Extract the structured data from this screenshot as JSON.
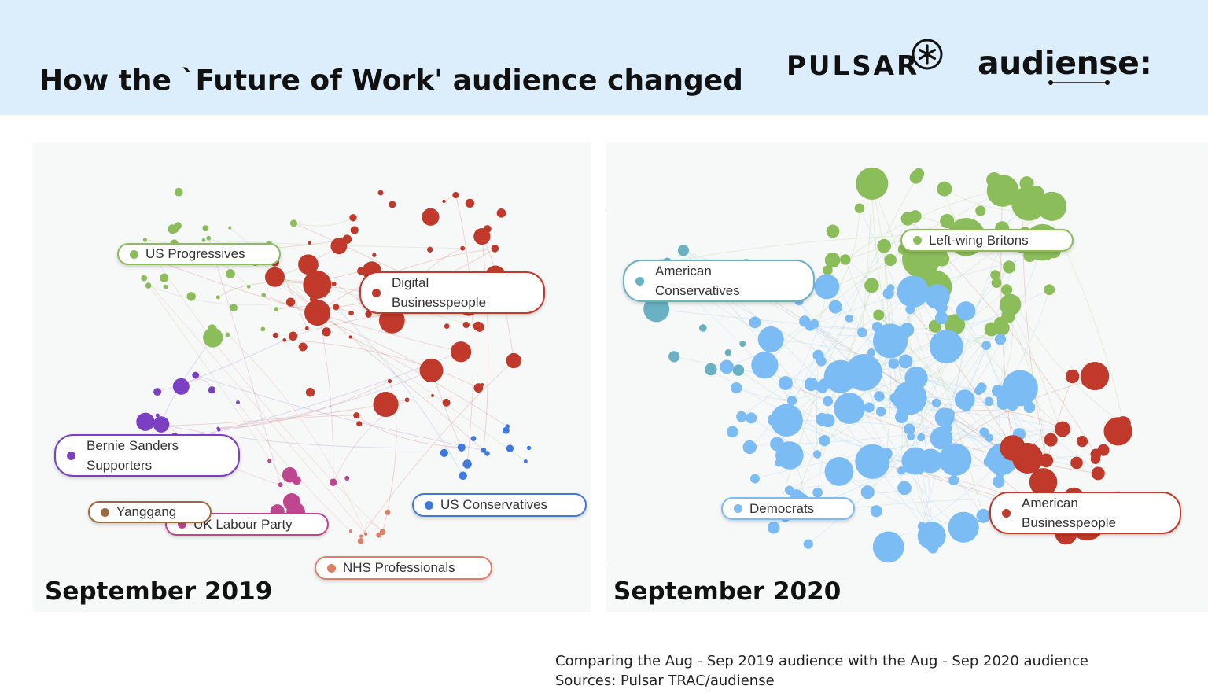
{
  "title": "How the `Future of Work' audience changed",
  "logos": {
    "pulsar": "PULSAR",
    "audiense": "audiense:"
  },
  "colors": {
    "header_bg": "#dcedfb",
    "progressives": "#8bbd5a",
    "businesspeople": "#c0392b",
    "bernie": "#7b3fc4",
    "labour": "#c0458f",
    "yanggang": "#9a6b3c",
    "us_conservatives": "#3f78de",
    "nhs": "#df8066",
    "american_conservatives": "#6ab1c4",
    "democrats": "#7cbcf4"
  },
  "panels": [
    {
      "year": "September 2019",
      "clusters": [
        {
          "label": "US Progressives",
          "color": "#8bbd5a"
        },
        {
          "label": "Digital Businesspeople",
          "line1": "Digital",
          "line2": "Businesspeople",
          "color": "#c0392b"
        },
        {
          "label": "Bernie Sanders Supporters",
          "line1": "Bernie Sanders",
          "line2": "Supporters",
          "color": "#7b3fc4"
        },
        {
          "label": "UK Labour Party",
          "color": "#c0458f"
        },
        {
          "label": "Yanggang",
          "color": "#9a6b3c"
        },
        {
          "label": "US Conservatives",
          "color": "#3f78de"
        },
        {
          "label": "NHS Professionals",
          "color": "#df8066"
        }
      ]
    },
    {
      "year": "September 2020",
      "clusters": [
        {
          "label": "American Conservatives",
          "line1": "American",
          "line2": "Conservatives",
          "color": "#6ab1c4"
        },
        {
          "label": "Left-wing Britons",
          "color": "#8bbd5a"
        },
        {
          "label": "Democrats",
          "color": "#7cbcf4"
        },
        {
          "label": "American Businesspeople",
          "line1": "American",
          "line2": "Businesspeople",
          "color": "#c0392b"
        }
      ]
    }
  ],
  "footnote": {
    "line1": "Comparing the Aug - Sep 2019 audience with the Aug - Sep 2020 audience",
    "line2": "Sources: Pulsar TRAC/audiense"
  }
}
